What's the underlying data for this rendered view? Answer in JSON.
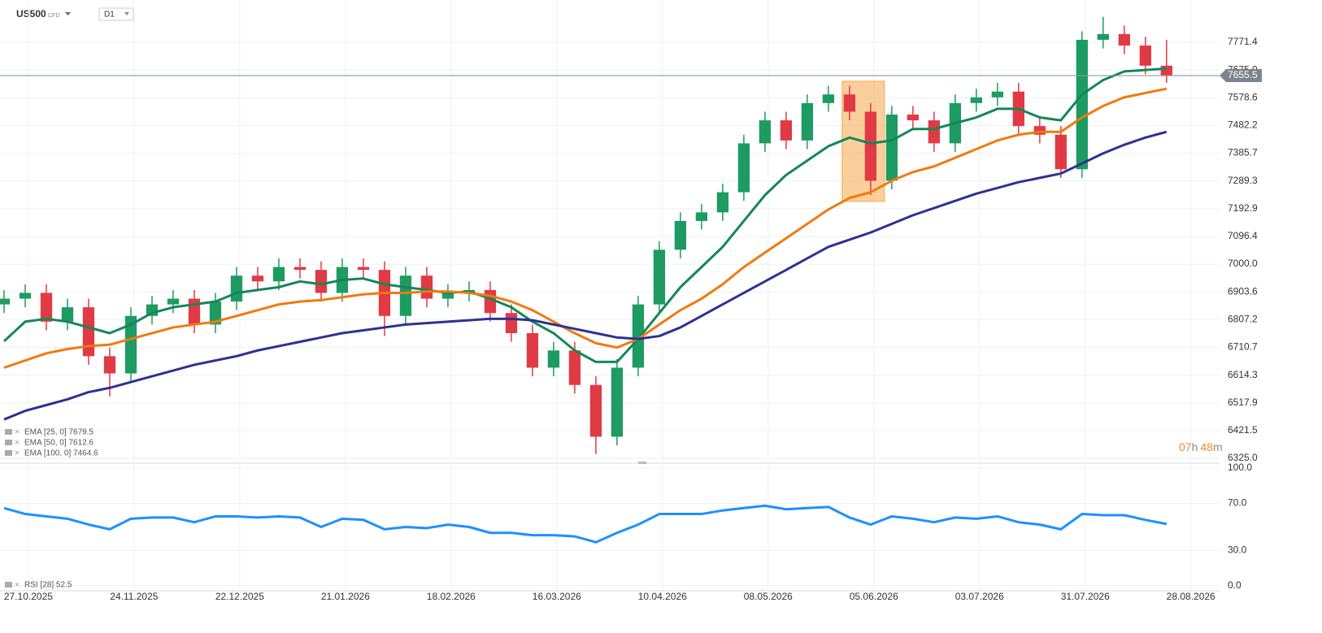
{
  "header": {
    "symbol": "US500",
    "type": "CFD",
    "timeframe": "D1"
  },
  "countdown": [
    "07",
    "h",
    "48",
    "m"
  ],
  "chart_data": [
    {
      "type": "candlestick",
      "x": [
        0,
        4,
        8,
        12,
        16,
        20,
        24,
        28,
        32,
        36,
        40,
        44,
        48,
        52,
        56,
        60,
        64,
        68,
        72,
        76,
        80,
        84,
        88,
        92,
        96,
        100,
        104,
        108,
        112,
        116,
        120,
        124,
        128,
        132,
        136,
        140,
        144,
        148,
        152,
        156,
        160,
        164,
        168,
        172,
        176,
        180,
        184,
        188,
        192,
        196,
        200,
        204,
        208,
        212,
        216,
        220
      ],
      "open": [
        6860,
        6880,
        6900,
        6800,
        6850,
        6680,
        6620,
        6820,
        6860,
        6880,
        6790,
        6870,
        6960,
        6940,
        6990,
        6980,
        6900,
        6990,
        6980,
        6820,
        6960,
        6880,
        6900,
        6910,
        6830,
        6760,
        6640,
        6700,
        6580,
        6400,
        6640,
        6860,
        7050,
        7150,
        7180,
        7250,
        7420,
        7500,
        7430,
        7560,
        7590,
        7530,
        7290,
        7520,
        7500,
        7420,
        7560,
        7580,
        7600,
        7480,
        7450,
        7330,
        7780,
        7800,
        7760,
        7690
      ],
      "high": [
        6910,
        6930,
        6930,
        6880,
        6880,
        6710,
        6850,
        6890,
        6910,
        6910,
        6900,
        6990,
        6990,
        7020,
        7020,
        7010,
        7020,
        7020,
        7010,
        6990,
        6990,
        6930,
        6940,
        6940,
        6860,
        6790,
        6730,
        6730,
        6610,
        6670,
        6890,
        7080,
        7180,
        7210,
        7280,
        7450,
        7530,
        7530,
        7590,
        7620,
        7620,
        7560,
        7550,
        7550,
        7530,
        7590,
        7610,
        7630,
        7630,
        7510,
        7480,
        7810,
        7860,
        7830,
        7790,
        7780
      ],
      "low": [
        6830,
        6850,
        6770,
        6770,
        6650,
        6540,
        6590,
        6790,
        6830,
        6760,
        6760,
        6840,
        6910,
        6910,
        6950,
        6870,
        6870,
        6950,
        6750,
        6790,
        6850,
        6850,
        6870,
        6800,
        6730,
        6610,
        6610,
        6550,
        6340,
        6370,
        6610,
        6830,
        7020,
        7120,
        7150,
        7220,
        7390,
        7400,
        7400,
        7530,
        7500,
        7240,
        7260,
        7470,
        7390,
        7390,
        7530,
        7550,
        7450,
        7420,
        7300,
        7300,
        7750,
        7730,
        7660,
        7630
      ],
      "close": [
        6880,
        6900,
        6800,
        6850,
        6680,
        6620,
        6820,
        6860,
        6880,
        6790,
        6870,
        6960,
        6940,
        6990,
        6980,
        6900,
        6990,
        6980,
        6820,
        6960,
        6880,
        6900,
        6910,
        6830,
        6760,
        6640,
        6700,
        6580,
        6400,
        6640,
        6860,
        7050,
        7150,
        7180,
        7250,
        7420,
        7500,
        7430,
        7560,
        7590,
        7530,
        7290,
        7520,
        7500,
        7420,
        7560,
        7580,
        7600,
        7480,
        7450,
        7330,
        7780,
        7800,
        7760,
        7690,
        7655.5
      ],
      "up_color": "#1e9b62",
      "down_color": "#e03a45",
      "series": [
        {
          "name": "EMA [25, 0] 7679.5",
          "color": "#14875a",
          "values": [
            6732,
            6800,
            6810,
            6800,
            6780,
            6760,
            6790,
            6830,
            6850,
            6860,
            6870,
            6900,
            6910,
            6920,
            6940,
            6930,
            6945,
            6950,
            6930,
            6920,
            6910,
            6900,
            6905,
            6880,
            6850,
            6800,
            6760,
            6700,
            6660,
            6660,
            6740,
            6830,
            6920,
            6990,
            7060,
            7150,
            7240,
            7310,
            7360,
            7410,
            7440,
            7420,
            7430,
            7470,
            7470,
            7490,
            7510,
            7540,
            7540,
            7510,
            7500,
            7590,
            7640,
            7670,
            7675,
            7680
          ]
        },
        {
          "name": "EMA [50, 0] 7612.6",
          "color": "#f07a10",
          "values": [
            6640,
            6665,
            6690,
            6705,
            6715,
            6720,
            6740,
            6760,
            6780,
            6790,
            6800,
            6820,
            6840,
            6860,
            6870,
            6875,
            6885,
            6895,
            6900,
            6900,
            6905,
            6905,
            6900,
            6890,
            6870,
            6840,
            6800,
            6760,
            6725,
            6710,
            6740,
            6790,
            6840,
            6880,
            6930,
            6990,
            7040,
            7090,
            7140,
            7190,
            7230,
            7250,
            7290,
            7320,
            7340,
            7370,
            7400,
            7430,
            7450,
            7460,
            7460,
            7510,
            7550,
            7580,
            7595,
            7610
          ]
        },
        {
          "name": "EMA [100, 0] 7464.6",
          "color": "#2e3192",
          "values": [
            6460,
            6490,
            6510,
            6530,
            6555,
            6570,
            6590,
            6610,
            6630,
            6650,
            6665,
            6680,
            6700,
            6715,
            6730,
            6745,
            6760,
            6770,
            6780,
            6790,
            6795,
            6800,
            6805,
            6810,
            6810,
            6805,
            6790,
            6775,
            6760,
            6745,
            6740,
            6750,
            6780,
            6820,
            6860,
            6900,
            6940,
            6980,
            7020,
            7060,
            7085,
            7110,
            7140,
            7170,
            7195,
            7220,
            7245,
            7265,
            7285,
            7300,
            7315,
            7350,
            7385,
            7415,
            7440,
            7460
          ]
        }
      ],
      "last_price": 7655.5,
      "highlight_box": {
        "x": [
          158.6,
          166.6
        ],
        "y": [
          7218,
          7636
        ],
        "color": "#f7a84a"
      },
      "xlim": [
        -0.77,
        230.8
      ],
      "xticks": [
        {
          "value": 4.6,
          "label": "27.10.2025"
        },
        {
          "value": 24.6,
          "label": "24.11.2025"
        },
        {
          "value": 44.6,
          "label": "22.12.2025"
        },
        {
          "value": 64.6,
          "label": "21.01.2026"
        },
        {
          "value": 84.6,
          "label": "18.02.2026"
        },
        {
          "value": 104.6,
          "label": "16.03.2026"
        },
        {
          "value": 124.6,
          "label": "10.04.2026"
        },
        {
          "value": 144.6,
          "label": "08.05.2026"
        },
        {
          "value": 164.6,
          "label": "05.06.2026"
        },
        {
          "value": 184.6,
          "label": "03.07.2026"
        },
        {
          "value": 204.6,
          "label": "31.07.2026"
        },
        {
          "value": 224.6,
          "label": "28.08.2026"
        }
      ],
      "ylim": [
        6308,
        7876
      ],
      "yticks": [
        {
          "value": 6325,
          "label": "6325.0"
        },
        6421.5,
        6517.9,
        6614.3,
        6710.7,
        6807.2,
        6903.6,
        {
          "value": 7000,
          "label": "7000.0"
        },
        7096.4,
        7192.9,
        7289.3,
        7385.7,
        7482.2,
        7578.6,
        {
          "value": 7675,
          "label": "7675.0"
        },
        7771.4
      ],
      "grid": true
    },
    {
      "type": "line",
      "x": [
        0,
        4,
        8,
        12,
        16,
        20,
        24,
        28,
        32,
        36,
        40,
        44,
        48,
        52,
        56,
        60,
        64,
        68,
        72,
        76,
        80,
        84,
        88,
        92,
        96,
        100,
        104,
        108,
        112,
        116,
        120,
        124,
        128,
        132,
        136,
        140,
        144,
        148,
        152,
        156,
        160,
        164,
        168,
        172,
        176,
        180,
        184,
        188,
        192,
        196,
        200,
        204,
        208,
        212,
        216,
        220
      ],
      "series": [
        {
          "name": "RSI [28] 52.5",
          "color": "#1e90ff",
          "values": [
            66,
            61,
            59,
            57,
            52,
            48,
            57,
            58,
            58,
            54,
            59,
            59,
            58,
            59,
            58,
            50,
            57,
            56,
            48,
            50,
            49,
            52,
            50,
            45,
            45,
            43,
            43,
            42,
            37,
            45,
            52,
            61,
            61,
            61,
            64,
            66,
            68,
            65,
            66,
            67,
            58,
            52,
            59,
            57,
            54,
            58,
            57,
            59,
            54,
            52,
            48,
            61,
            60,
            60,
            56,
            52.5
          ]
        }
      ],
      "xlim": [
        -0.77,
        230.8
      ],
      "ylim": [
        0,
        100
      ],
      "yticks": [
        {
          "value": 0,
          "label": "0.0"
        },
        {
          "value": 30,
          "label": "30.0"
        },
        {
          "value": 70,
          "label": "70.0"
        },
        {
          "value": 100,
          "label": "100.0"
        }
      ],
      "grid": true
    }
  ]
}
